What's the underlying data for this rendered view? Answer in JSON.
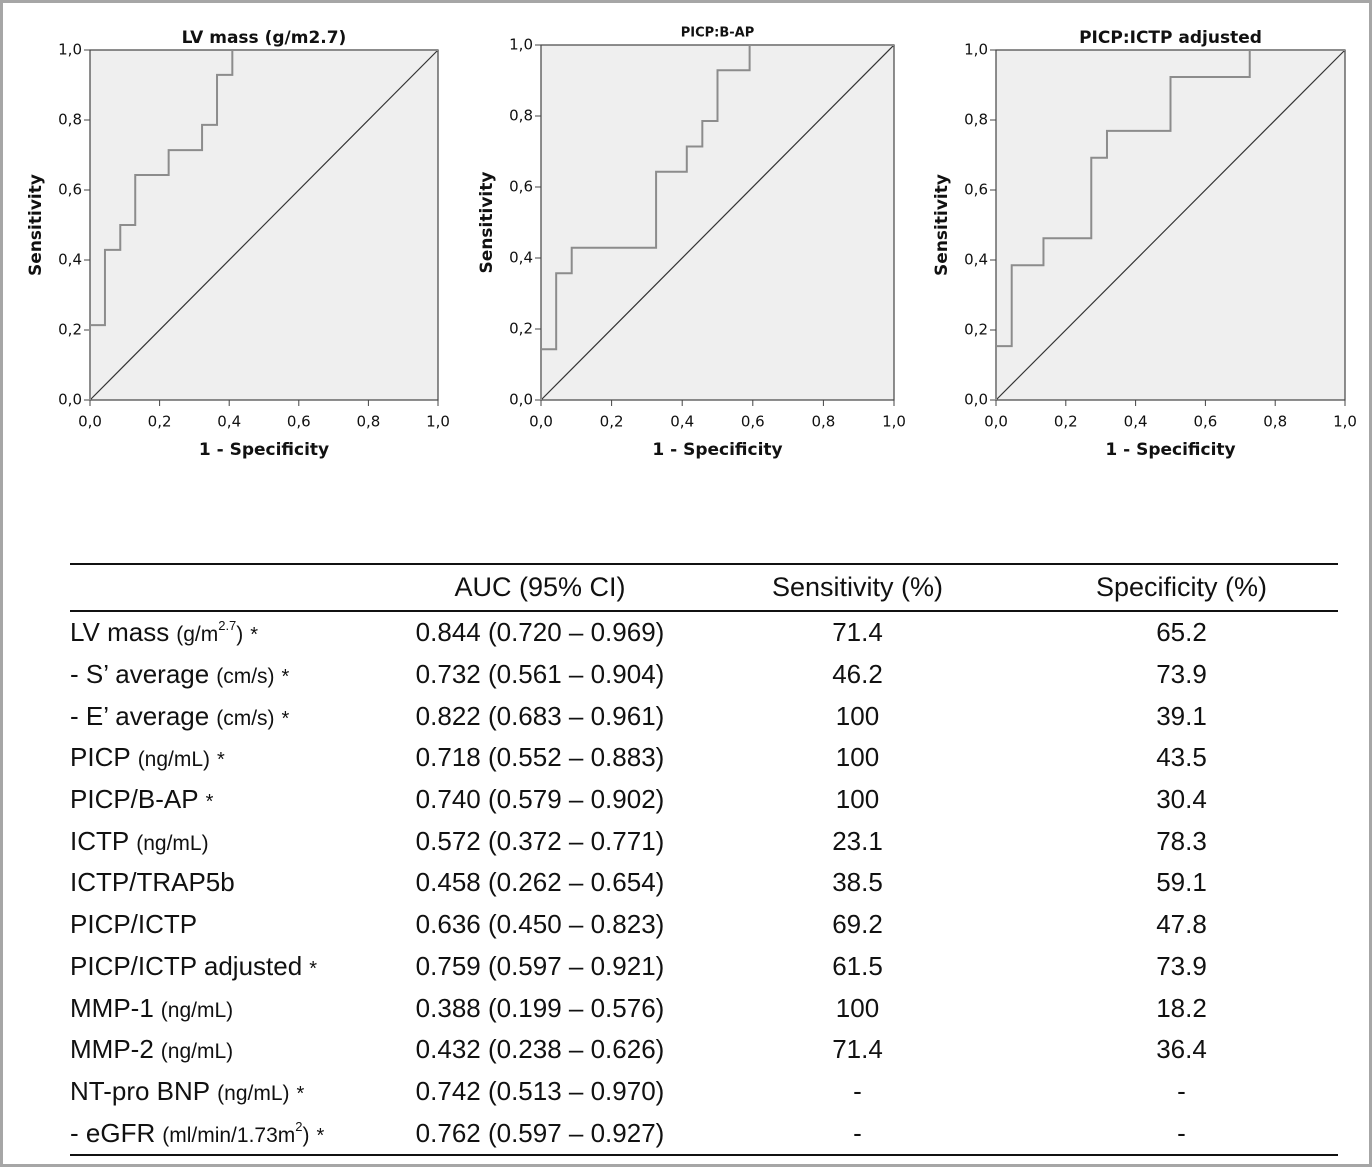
{
  "chart_data": [
    {
      "type": "roc",
      "title": "LV mass (g/m2.7)",
      "xlabel": "1 - Specificity",
      "ylabel": "Sensitivity",
      "x": [
        0,
        0,
        0.043,
        0.043,
        0.087,
        0.087,
        0.13,
        0.13,
        0.226,
        0.226,
        0.322,
        0.322,
        0.365,
        0.365,
        0.409,
        0.409,
        1
      ],
      "series": [
        {
          "color": "#8c8c8c",
          "values": [
            0,
            0.214,
            0.214,
            0.429,
            0.429,
            0.5,
            0.5,
            0.643,
            0.643,
            0.714,
            0.714,
            0.786,
            0.786,
            0.929,
            0.929,
            1,
            1
          ]
        }
      ],
      "xlim": [
        0,
        1
      ],
      "ylim": [
        0,
        1
      ],
      "xticks": [
        {
          "value": 0,
          "label": "0,0"
        },
        {
          "value": 0.2,
          "label": "0,2"
        },
        {
          "value": 0.4,
          "label": "0,4"
        },
        {
          "value": 0.6,
          "label": "0,6"
        },
        {
          "value": 0.8,
          "label": "0,8"
        },
        {
          "value": 1,
          "label": "1,0"
        }
      ],
      "yticks": [
        {
          "value": 0,
          "label": "0,0"
        },
        {
          "value": 0.2,
          "label": "0,2"
        },
        {
          "value": 0.4,
          "label": "0,4"
        },
        {
          "value": 0.6,
          "label": "0,6"
        },
        {
          "value": 0.8,
          "label": "0,8"
        },
        {
          "value": 1,
          "label": "1,0"
        }
      ],
      "background": "#efefef",
      "diagonal": true
    },
    {
      "type": "roc",
      "title": "PICP:B-AP",
      "xlabel": "1 - Specificity",
      "ylabel": "Sensitivity",
      "x": [
        0,
        0,
        0.043,
        0.043,
        0.087,
        0.087,
        0.326,
        0.326,
        0.413,
        0.413,
        0.457,
        0.457,
        0.5,
        0.5,
        0.591,
        0.591,
        1
      ],
      "series": [
        {
          "color": "#8c8c8c",
          "values": [
            0,
            0.143,
            0.143,
            0.357,
            0.357,
            0.429,
            0.429,
            0.643,
            0.643,
            0.714,
            0.714,
            0.786,
            0.786,
            0.929,
            0.929,
            1,
            1
          ]
        }
      ],
      "xlim": [
        0,
        1
      ],
      "ylim": [
        0,
        1
      ],
      "xticks": [
        {
          "value": 0,
          "label": "0,0"
        },
        {
          "value": 0.2,
          "label": "0,2"
        },
        {
          "value": 0.4,
          "label": "0,4"
        },
        {
          "value": 0.6,
          "label": "0,6"
        },
        {
          "value": 0.8,
          "label": "0,8"
        },
        {
          "value": 1,
          "label": "1,0"
        }
      ],
      "yticks": [
        {
          "value": 0,
          "label": "0,0"
        },
        {
          "value": 0.2,
          "label": "0,2"
        },
        {
          "value": 0.4,
          "label": "0,4"
        },
        {
          "value": 0.6,
          "label": "0,6"
        },
        {
          "value": 0.8,
          "label": "0,8"
        },
        {
          "value": 1,
          "label": "1,0"
        }
      ],
      "background": "#efefef",
      "diagonal": true
    },
    {
      "type": "roc",
      "title": "PICP:ICTP adjusted",
      "xlabel": "1 - Specificity",
      "ylabel": "Sensitivity",
      "x": [
        0,
        0,
        0.045,
        0.045,
        0.136,
        0.136,
        0.273,
        0.273,
        0.318,
        0.318,
        0.5,
        0.5,
        0.727,
        0.727,
        1
      ],
      "series": [
        {
          "color": "#8c8c8c",
          "values": [
            0,
            0.154,
            0.154,
            0.385,
            0.385,
            0.462,
            0.462,
            0.692,
            0.692,
            0.769,
            0.769,
            0.923,
            0.923,
            1,
            1
          ]
        }
      ],
      "xlim": [
        0,
        1
      ],
      "ylim": [
        0,
        1
      ],
      "xticks": [
        {
          "value": 0,
          "label": "0,0"
        },
        {
          "value": 0.2,
          "label": "0,2"
        },
        {
          "value": 0.4,
          "label": "0,4"
        },
        {
          "value": 0.6,
          "label": "0,6"
        },
        {
          "value": 0.8,
          "label": "0,8"
        },
        {
          "value": 1,
          "label": "1,0"
        }
      ],
      "yticks": [
        {
          "value": 0,
          "label": "0,0"
        },
        {
          "value": 0.2,
          "label": "0,2"
        },
        {
          "value": 0.4,
          "label": "0,4"
        },
        {
          "value": 0.6,
          "label": "0,6"
        },
        {
          "value": 0.8,
          "label": "0,8"
        },
        {
          "value": 1,
          "label": "1,0"
        }
      ],
      "background": "#efefef",
      "diagonal": true
    }
  ],
  "table": {
    "header": [
      "AUC (95% CI)",
      "Sensitivity (%)",
      "Specificity (%)"
    ],
    "rows": [
      {
        "label": [
          {
            "text": "LV mass",
            "style": "normal"
          },
          {
            "text": "(g/m",
            "style": "small"
          },
          {
            "text": "2.7",
            "style": "sup"
          },
          {
            "text": ")",
            "style": "small-cont"
          },
          {
            "text": "*",
            "style": "star"
          }
        ],
        "cells": [
          "0.844 (0.720 – 0.969)",
          "71.4",
          "65.2"
        ]
      },
      {
        "label": [
          {
            "text": "- S’ average",
            "style": "normal"
          },
          {
            "text": "(cm/s)",
            "style": "small"
          },
          {
            "text": "*",
            "style": "star"
          }
        ],
        "cells": [
          "0.732 (0.561 – 0.904)",
          "46.2",
          "73.9"
        ]
      },
      {
        "label": [
          {
            "text": "- E’ average",
            "style": "normal"
          },
          {
            "text": "(cm/s)",
            "style": "small"
          },
          {
            "text": "*",
            "style": "star"
          }
        ],
        "cells": [
          "0.822 (0.683 – 0.961)",
          "100",
          "39.1"
        ]
      },
      {
        "label": [
          {
            "text": "PICP",
            "style": "normal"
          },
          {
            "text": "(ng/mL)",
            "style": "small"
          },
          {
            "text": "*",
            "style": "star"
          }
        ],
        "cells": [
          "0.718 (0.552 – 0.883)",
          "100",
          "43.5"
        ]
      },
      {
        "label": [
          {
            "text": "PICP/B-AP",
            "style": "normal"
          },
          {
            "text": "*",
            "style": "star"
          }
        ],
        "cells": [
          "0.740 (0.579 – 0.902)",
          "100",
          "30.4"
        ]
      },
      {
        "label": [
          {
            "text": "ICTP",
            "style": "normal"
          },
          {
            "text": "(ng/mL)",
            "style": "small"
          }
        ],
        "cells": [
          "0.572 (0.372 – 0.771)",
          "23.1",
          "78.3"
        ]
      },
      {
        "label": [
          {
            "text": "ICTP/TRAP5b",
            "style": "normal"
          }
        ],
        "cells": [
          "0.458 (0.262 – 0.654)",
          "38.5",
          "59.1"
        ]
      },
      {
        "label": [
          {
            "text": "PICP/ICTP",
            "style": "normal"
          }
        ],
        "cells": [
          "0.636 (0.450 – 0.823)",
          "69.2",
          "47.8"
        ]
      },
      {
        "label": [
          {
            "text": "PICP/ICTP adjusted",
            "style": "normal"
          },
          {
            "text": "*",
            "style": "star"
          }
        ],
        "cells": [
          "0.759 (0.597 – 0.921)",
          "61.5",
          "73.9"
        ]
      },
      {
        "label": [
          {
            "text": "MMP-1",
            "style": "normal"
          },
          {
            "text": "(ng/mL)",
            "style": "small"
          }
        ],
        "cells": [
          "0.388 (0.199 – 0.576)",
          "100",
          "18.2"
        ]
      },
      {
        "label": [
          {
            "text": "MMP-2",
            "style": "normal"
          },
          {
            "text": "(ng/mL)",
            "style": "small"
          }
        ],
        "cells": [
          "0.432 (0.238 – 0.626)",
          "71.4",
          "36.4"
        ]
      },
      {
        "label": [
          {
            "text": "NT-pro BNP",
            "style": "normal"
          },
          {
            "text": "(ng/mL)",
            "style": "small"
          },
          {
            "text": "*",
            "style": "star"
          }
        ],
        "cells": [
          "0.742 (0.513 – 0.970)",
          "-",
          "-"
        ]
      },
      {
        "label": [
          {
            "text": "- eGFR",
            "style": "normal"
          },
          {
            "text": "(ml/min/1.73m",
            "style": "small"
          },
          {
            "text": "2",
            "style": "sup"
          },
          {
            "text": ")",
            "style": "small-cont"
          },
          {
            "text": "*",
            "style": "star"
          }
        ],
        "cells": [
          "0.762 (0.597 – 0.927)",
          "-",
          "-"
        ]
      }
    ]
  }
}
